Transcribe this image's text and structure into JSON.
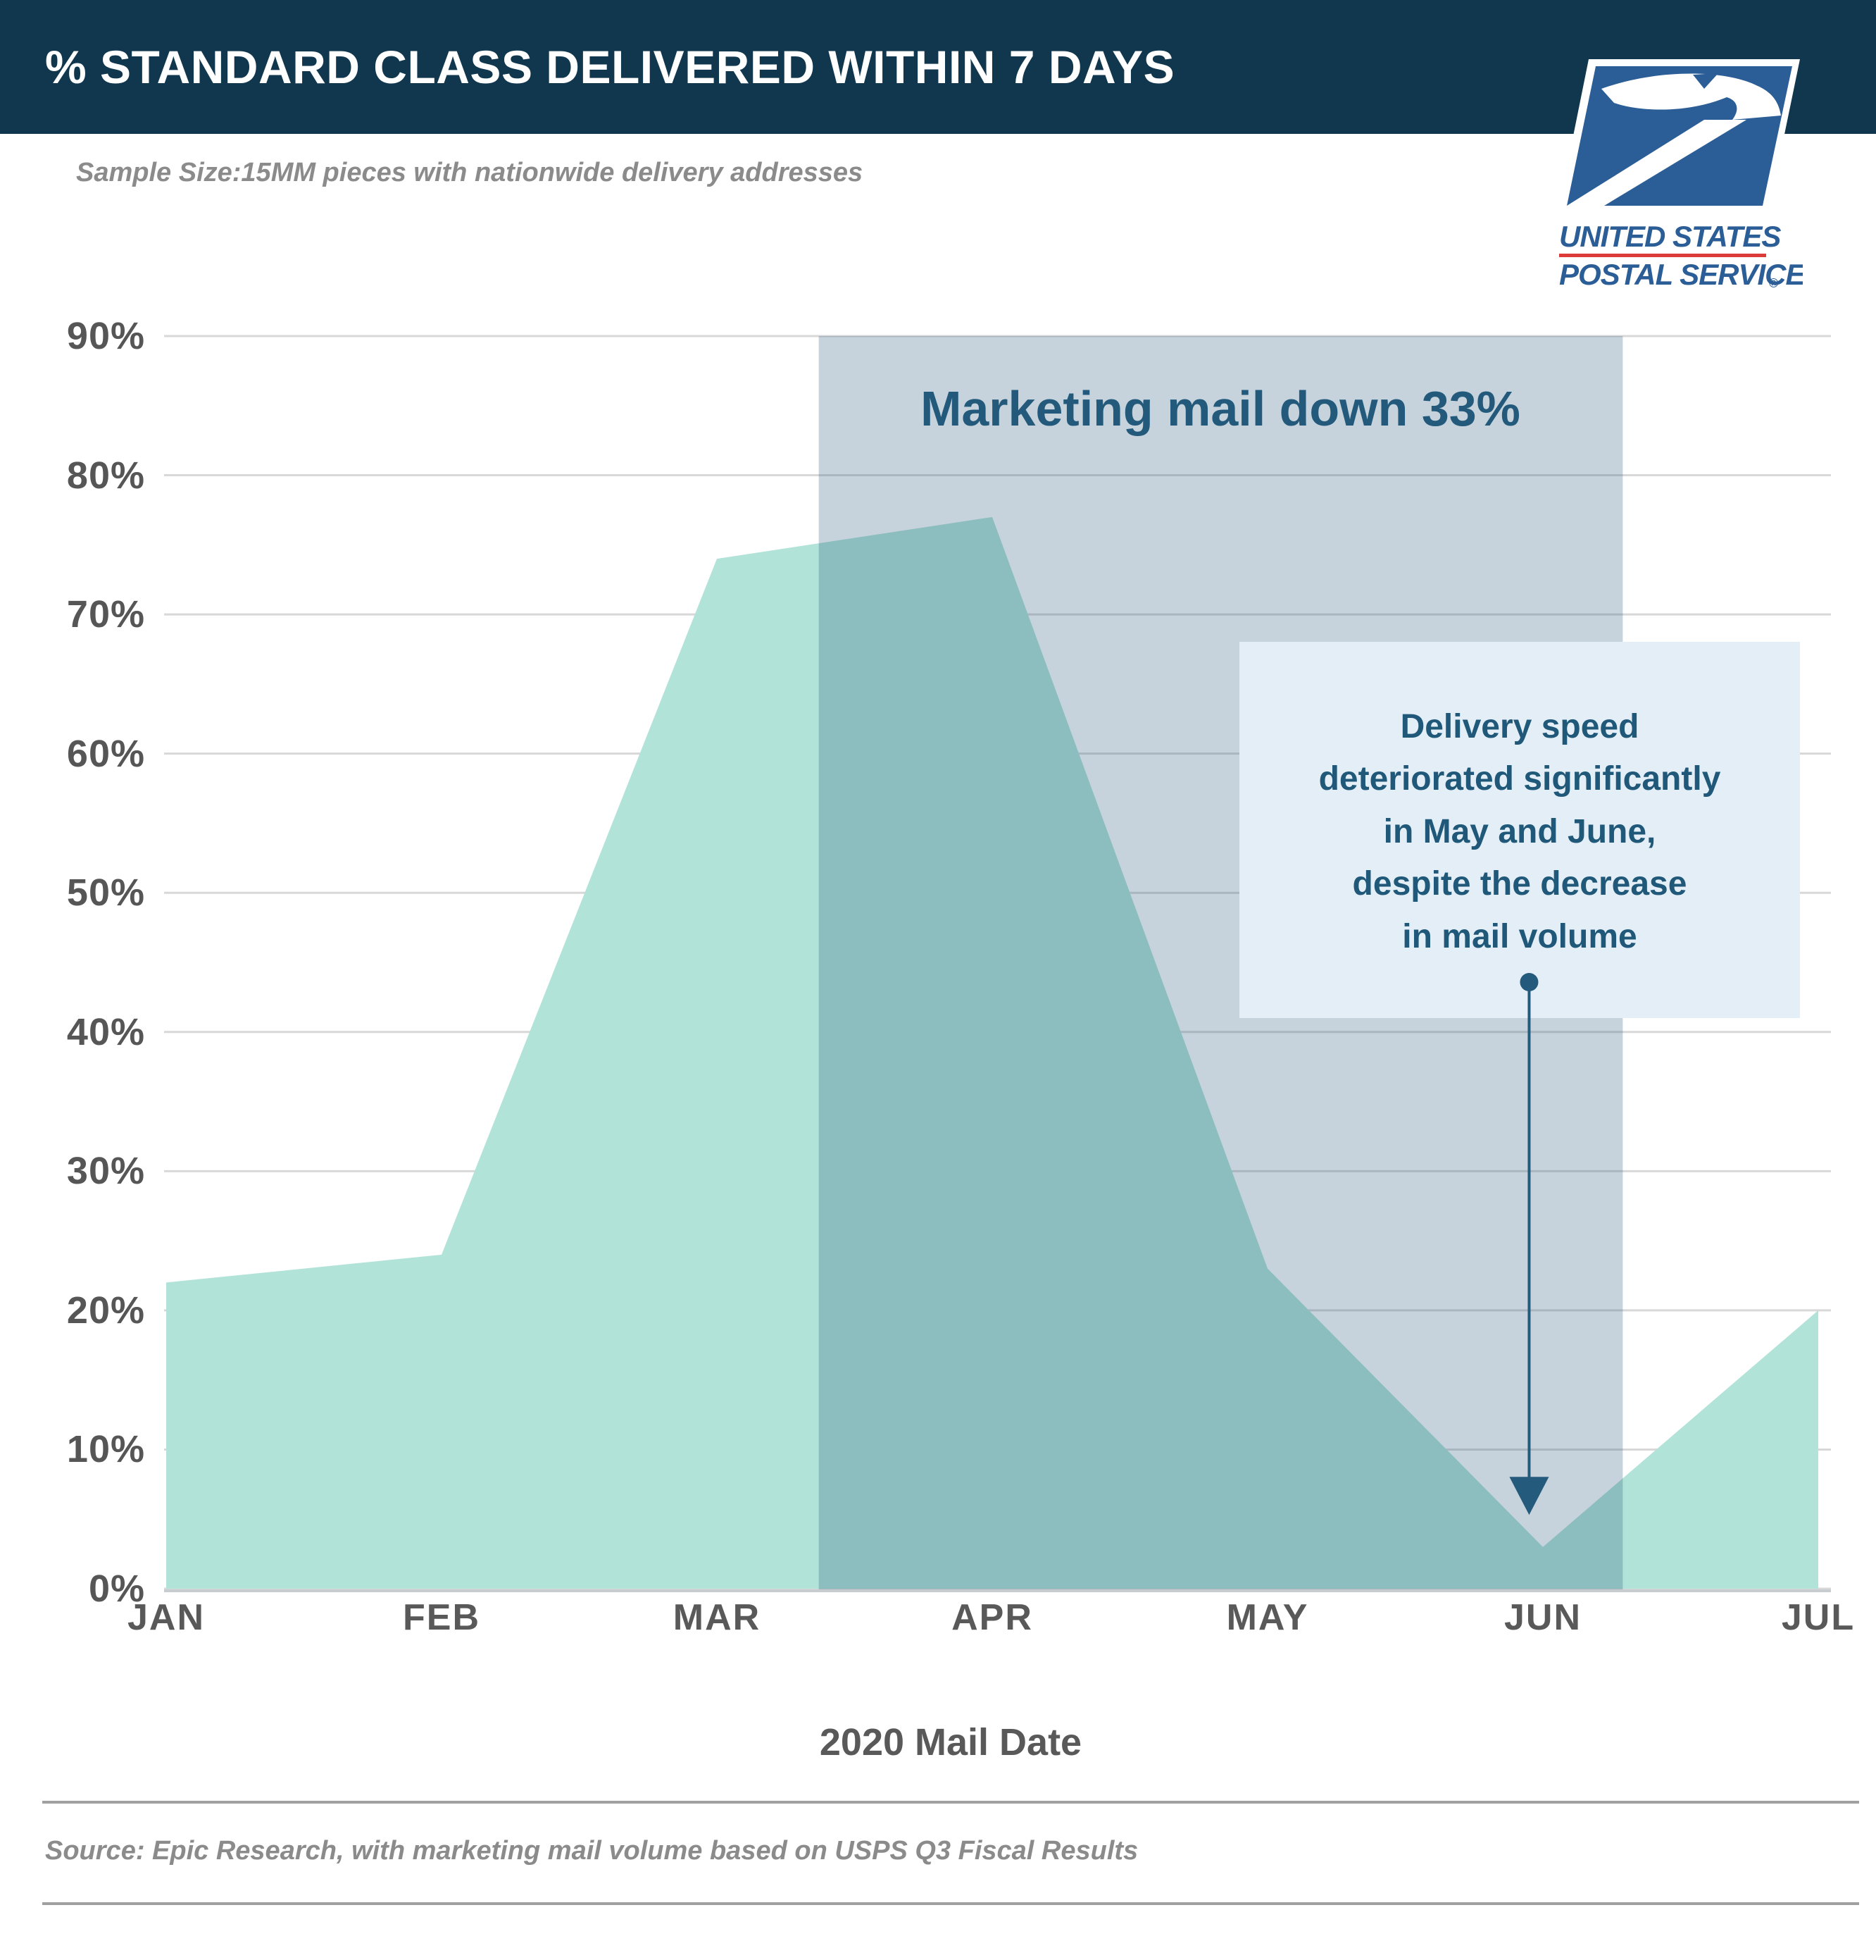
{
  "header": {
    "title": "% STANDARD CLASS DELIVERED WITHIN 7 DAYS",
    "logo": {
      "line1": "UNITED STATES",
      "line2": "POSTAL SERVICE",
      "reg_mark": "®"
    }
  },
  "subtitle": "Sample Size:15MM pieces with nationwide delivery addresses",
  "chart_data": {
    "type": "area",
    "categories": [
      "JAN",
      "FEB",
      "MAR",
      "APR",
      "MAY",
      "JUN",
      "JUL"
    ],
    "values": [
      22,
      24,
      74,
      77,
      23,
      3,
      20
    ],
    "series_name": "% standard class delivered within 7 days",
    "xlabel": "2020 Mail Date",
    "ylim": [
      0,
      90
    ],
    "y_ticks": [
      0,
      10,
      20,
      30,
      40,
      50,
      60,
      70,
      80,
      90
    ],
    "y_tick_suffix": "%",
    "grid": true,
    "area_color": "#b2e3d8",
    "overlay": {
      "label": "Marketing mail down 33%",
      "start_month_index": 2.37,
      "end_month_index": 5.29,
      "color": "rgba(34,84,120,0.26)",
      "label_color": "#235a7c"
    },
    "callout": {
      "lines": [
        "Delivery speed",
        "deteriorated significantly",
        "in May and June,",
        "despite the decrease",
        "in mail volume"
      ],
      "arrow_month_index": 4.95,
      "arrow_tip_value": 5.3,
      "box_color": "#e4eef7",
      "text_color": "#1f5878",
      "arrow_color": "#245b7d"
    }
  },
  "source": "Source: Epic Research, with marketing mail volume based on USPS Q3 Fiscal Results",
  "colors": {
    "header_bg": "#11374f",
    "usps_blue": "#2b5d96",
    "usps_red": "#dd3a3a",
    "axis_text": "#595959",
    "muted_text": "#8b8b8b",
    "gridline": "#d8d8d8",
    "zero_line": "#c7ccd1"
  }
}
